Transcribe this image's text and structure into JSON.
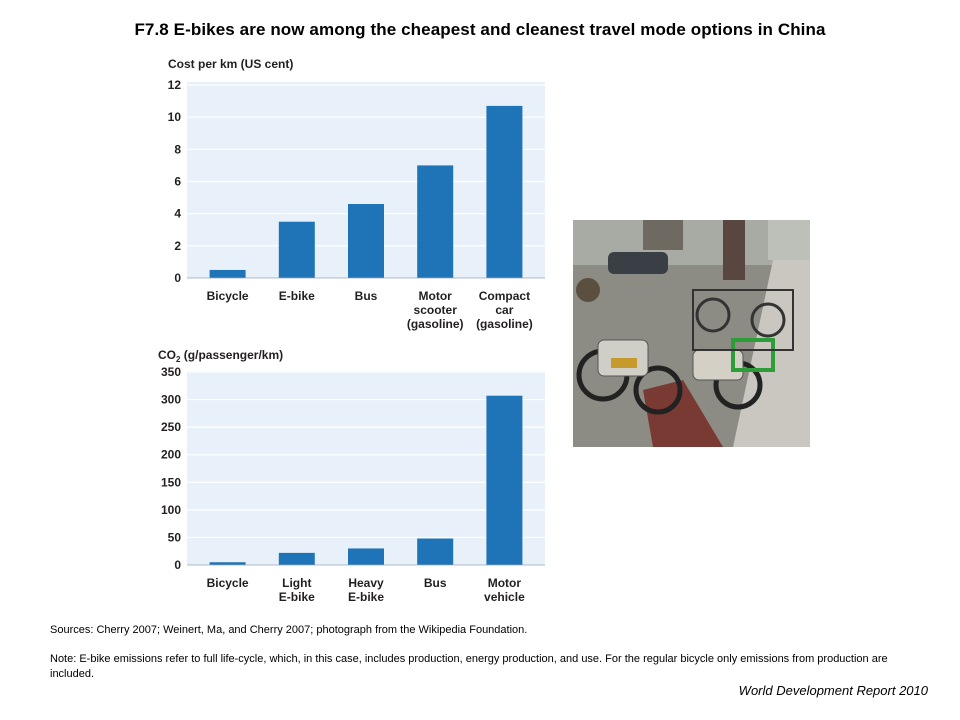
{
  "title": "F7.8 E-bikes are now among the cheapest and cleanest travel mode options in China",
  "chart_data": [
    {
      "type": "bar",
      "title": "Cost per km (US cent)",
      "categories": [
        [
          "Bicycle"
        ],
        [
          "E-bike"
        ],
        [
          "Bus"
        ],
        [
          "Motor",
          "scooter",
          "(gasoline)"
        ],
        [
          "Compact",
          "car",
          "(gasoline)"
        ]
      ],
      "values": [
        0.5,
        3.5,
        4.6,
        7.0,
        10.7
      ],
      "yticks": [
        0,
        2,
        4,
        6,
        8,
        10,
        12
      ],
      "ylim": [
        0,
        12
      ],
      "grid": true,
      "bar_color": "#1f74b8",
      "panel_color": "#e8f0f9"
    },
    {
      "type": "bar",
      "title_main": "CO",
      "title_sub": "2",
      "title_rest": " (g/passenger/km)",
      "categories": [
        [
          "Bicycle"
        ],
        [
          "Light",
          "E-bike"
        ],
        [
          "Heavy",
          "E-bike"
        ],
        [
          "Bus"
        ],
        [
          "Motor",
          "vehicle"
        ]
      ],
      "values": [
        5,
        22,
        30,
        48,
        307
      ],
      "yticks": [
        0,
        50,
        100,
        150,
        200,
        250,
        300,
        350
      ],
      "ylim": [
        0,
        350
      ],
      "grid": true,
      "bar_color": "#1f74b8",
      "panel_color": "#e8f0f9"
    }
  ],
  "sources": "Sources: Cherry 2007; Weinert, Ma, and Cherry 2007; photograph from the Wikipedia Foundation.",
  "note": "Note: E-bike emissions refer to full life-cycle, which, in this case, includes production, energy production, and use. For the regular bicycle only emissions from production are included.",
  "report": "World Development Report 2010"
}
